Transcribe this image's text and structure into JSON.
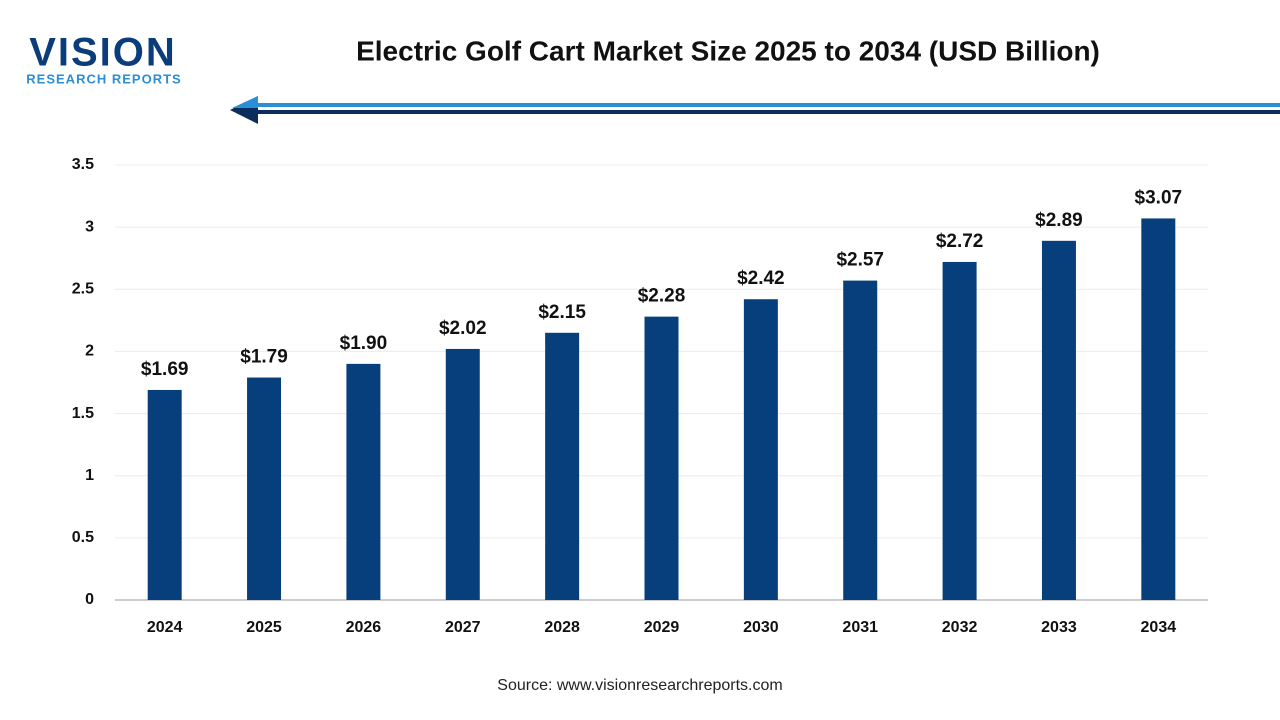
{
  "logo": {
    "name": "VISION",
    "tagline": "RESEARCH REPORTS"
  },
  "chart_data": {
    "type": "bar",
    "title": "Electric Golf Cart Market Size 2025 to 2034 (USD Billion)",
    "source": "Source: www.visionresearchreports.com",
    "categories": [
      "2024",
      "2025",
      "2026",
      "2027",
      "2028",
      "2029",
      "2030",
      "2031",
      "2032",
      "2033",
      "2034"
    ],
    "values": [
      1.69,
      1.79,
      1.9,
      2.02,
      2.15,
      2.28,
      2.42,
      2.57,
      2.72,
      2.89,
      3.07
    ],
    "value_labels": [
      "$1.69",
      "$1.79",
      "$1.90",
      "$2.02",
      "$2.15",
      "$2.28",
      "$2.42",
      "$2.57",
      "$2.72",
      "$2.89",
      "$3.07"
    ],
    "color": "#073f7c",
    "ylim": [
      0,
      3.5
    ],
    "yticks": [
      0,
      0.5,
      1,
      1.5,
      2,
      2.5,
      3,
      3.5
    ],
    "grid": true
  }
}
